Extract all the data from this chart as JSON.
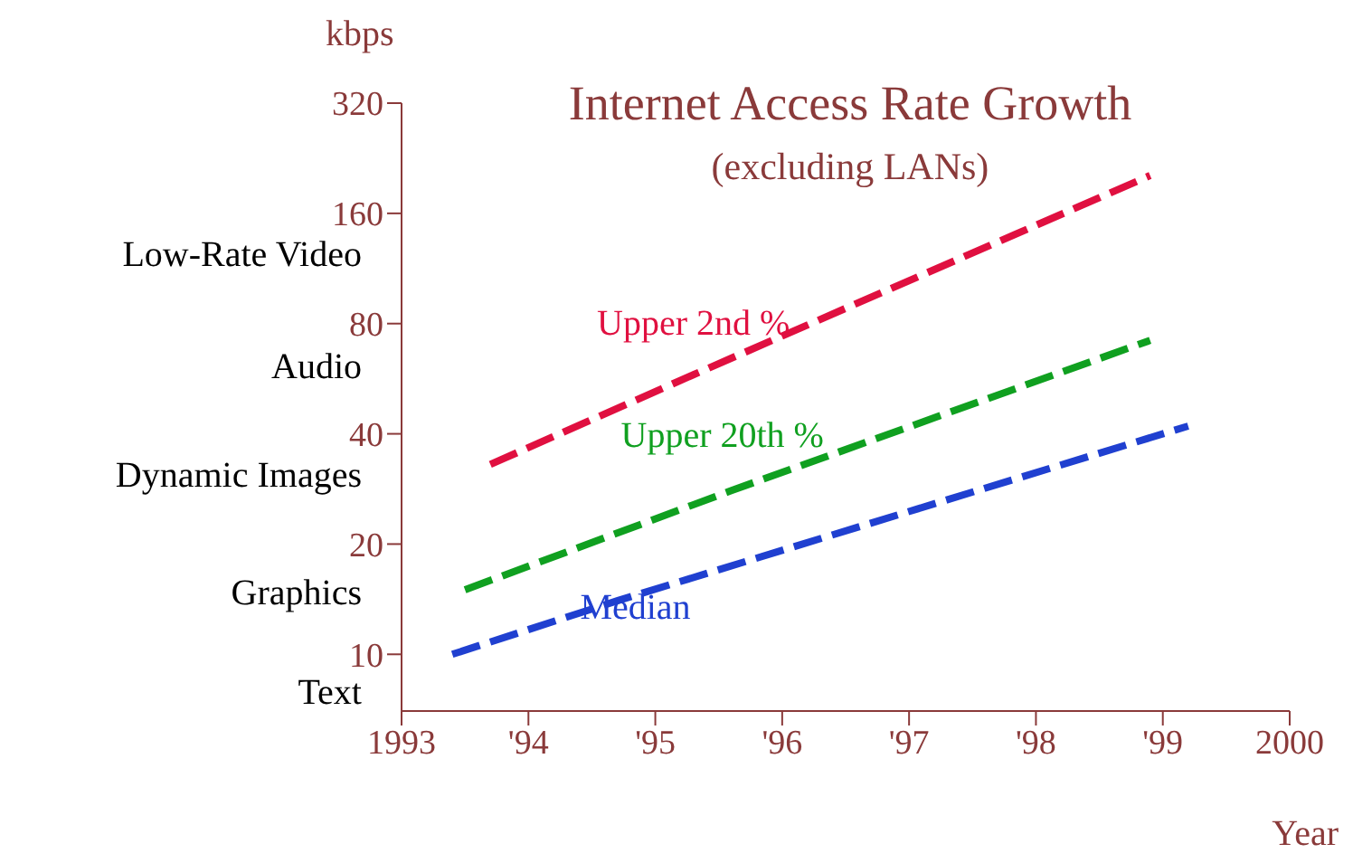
{
  "chart_data": {
    "type": "line",
    "title": "Internet Access Rate Growth",
    "subtitle": "(excluding LANs)",
    "xlabel": "Year",
    "ylabel": "kbps",
    "xlim": [
      1993,
      2000
    ],
    "xticks": [
      1993,
      {
        "value": 1994,
        "label": "'94"
      },
      {
        "value": 1995,
        "label": "'95"
      },
      {
        "value": 1996,
        "label": "'96"
      },
      {
        "value": 1997,
        "label": "'97"
      },
      {
        "value": 1998,
        "label": "'98"
      },
      {
        "value": 1999,
        "label": "'99"
      },
      2000
    ],
    "ylim": [
      7,
      320
    ],
    "yticks": [
      10,
      20,
      40,
      80,
      160,
      320
    ],
    "log": "y",
    "grid": false,
    "legend": false,
    "line_style": "dashed",
    "marker": "none",
    "series": [
      {
        "name": "Upper 2nd %",
        "color": "#e01040",
        "x": [
          1993.7,
          1995.3,
          1998.9
        ],
        "values": [
          33,
          58,
          203
        ]
      },
      {
        "name": "Upper 20th %",
        "color": "#10a020",
        "x": [
          1993.5,
          1995.6,
          1998.9
        ],
        "values": [
          15,
          28,
          72
        ]
      },
      {
        "name": "Median",
        "color": "#2040d0",
        "x": [
          1993.4,
          1994.7,
          1999.2
        ],
        "values": [
          10,
          14,
          42
        ]
      }
    ],
    "annotations": [
      "Low-Rate Video",
      "Audio",
      "Dynamic Images",
      "Graphics",
      "Text"
    ]
  }
}
